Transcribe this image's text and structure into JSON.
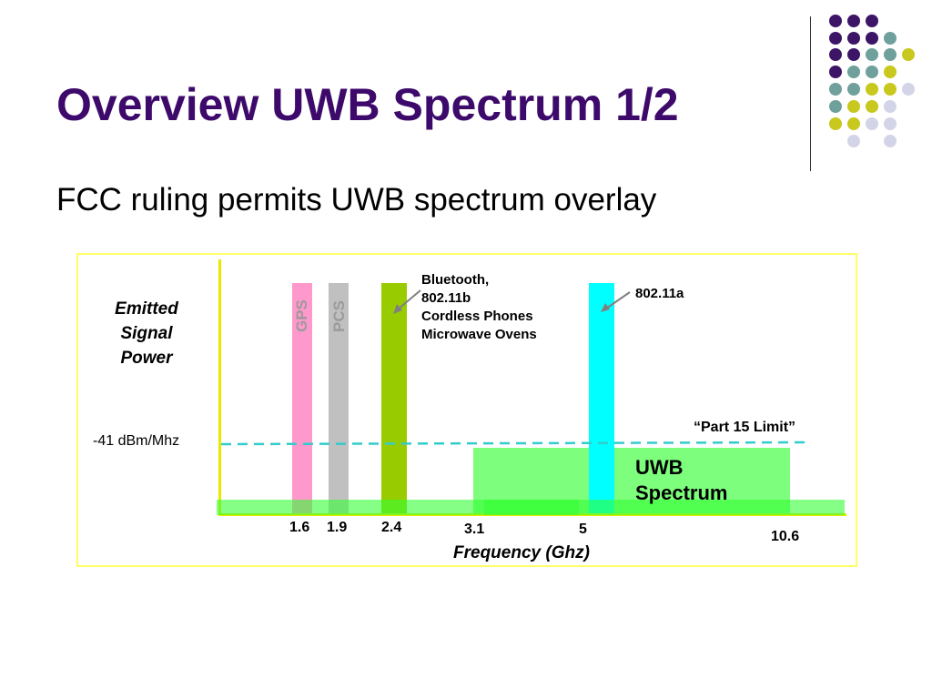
{
  "slide": {
    "title": "Overview UWB Spectrum 1/2",
    "subtitle": "FCC ruling permits UWB spectrum overlay",
    "title_color": "#3d0a6b"
  },
  "decoration": {
    "dot_colors": {
      "purple": "#3d1566",
      "teal": "#6fa09c",
      "olive": "#c9c81e",
      "lavender": "#d4d4e8"
    }
  },
  "diagram": {
    "y_axis_label": [
      "Emitted",
      "Signal",
      "Power"
    ],
    "limit_value_label": "-41 dBm/Mhz",
    "x_axis_label": "Frequency (Ghz)",
    "ticks": [
      "1.6",
      "1.9",
      "2.4",
      "3.1",
      "5",
      "10.6"
    ],
    "bands": [
      {
        "name": "GPS",
        "freq": 1.6,
        "color": "#ff99cc"
      },
      {
        "name": "PCS",
        "freq": 1.9,
        "color": "#c0c0c0"
      },
      {
        "name": "Bluetooth",
        "freq": 2.4,
        "color": "#99cc00"
      },
      {
        "name": "802.11a",
        "freq": 5,
        "color": "#00ffff"
      }
    ],
    "callout_2_4": [
      "Bluetooth,",
      "802.11b",
      "Cordless Phones",
      "Microwave Ovens"
    ],
    "callout_5": "802.11a",
    "part15_label": "“Part 15 Limit”",
    "uwb_label": [
      "UWB",
      "Spectrum"
    ],
    "uwb_range": [
      3.1,
      10.6
    ],
    "uwb_color": "#66ff66",
    "limit_line_color": "#33cccc",
    "axis_color": "#e8e800"
  }
}
